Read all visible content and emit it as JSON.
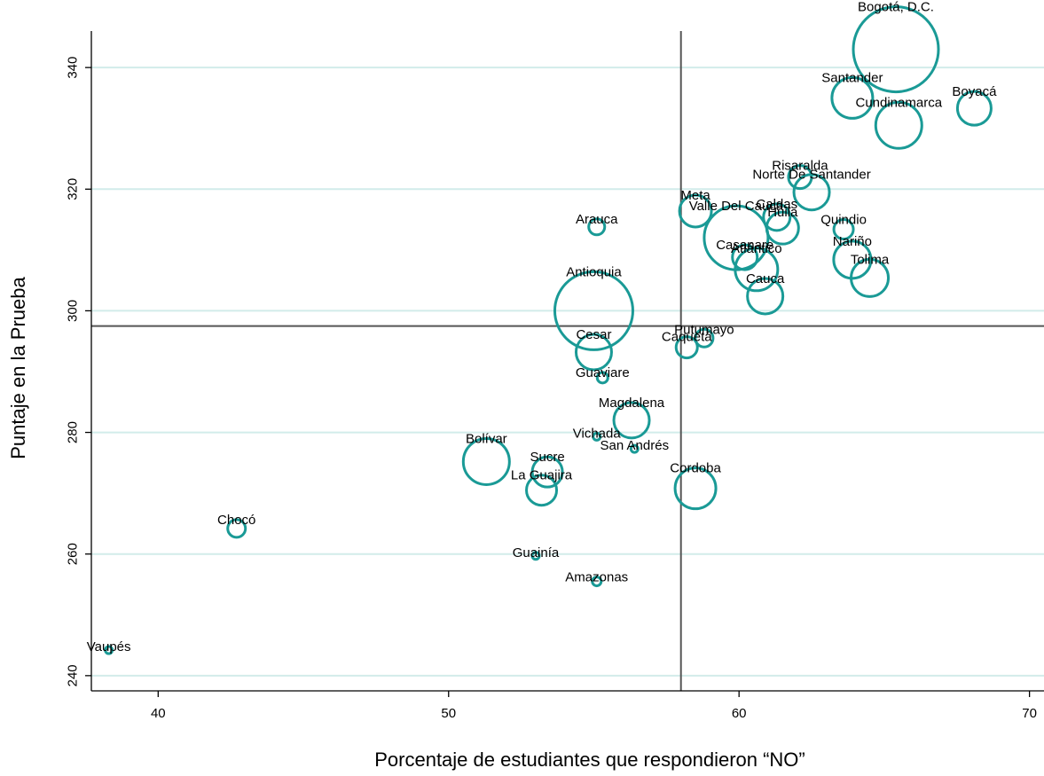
{
  "chart_data": {
    "type": "scatter",
    "xlabel": "Porcentaje de estudiantes que respondieron “NO”",
    "ylabel": "Puntaje en la Prueba",
    "xlim": [
      37.7,
      70.5
    ],
    "ylim": [
      237.5,
      346
    ],
    "xticks": [
      40,
      50,
      60,
      70
    ],
    "yticks": [
      240,
      260,
      280,
      300,
      320,
      340
    ],
    "grid": "horizontal",
    "ref_lines": {
      "x": 58,
      "y": 297.5
    },
    "colors": {
      "marker": "#1a9a96",
      "grid": "#d2ecea",
      "ref": "#555555",
      "axis": "#000000"
    },
    "points": [
      {
        "name": "Bogotá, D.C.",
        "x": 65.4,
        "y": 343,
        "size": 48
      },
      {
        "name": "Santander",
        "x": 63.9,
        "y": 335,
        "size": 23
      },
      {
        "name": "Boyacá",
        "x": 68.1,
        "y": 333.3,
        "size": 19
      },
      {
        "name": "Cundinamarca",
        "x": 65.5,
        "y": 330.5,
        "size": 26
      },
      {
        "name": "Risaralda",
        "x": 62.1,
        "y": 322,
        "size": 13
      },
      {
        "name": "Norte De Santander",
        "x": 62.5,
        "y": 319.5,
        "size": 20
      },
      {
        "name": "Meta",
        "x": 58.5,
        "y": 316.4,
        "size": 18
      },
      {
        "name": "Caldas",
        "x": 61.3,
        "y": 315.4,
        "size": 15
      },
      {
        "name": "Huila",
        "x": 61.5,
        "y": 313.6,
        "size": 18
      },
      {
        "name": "Arauca",
        "x": 55.1,
        "y": 313.8,
        "size": 9
      },
      {
        "name": "Quindio",
        "x": 63.6,
        "y": 313.4,
        "size": 11
      },
      {
        "name": "Valle Del Cauca",
        "x": 59.9,
        "y": 312,
        "size": 36
      },
      {
        "name": "Casanare",
        "x": 60.2,
        "y": 308.8,
        "size": 14
      },
      {
        "name": "Nariño",
        "x": 63.9,
        "y": 308.4,
        "size": 21
      },
      {
        "name": "Atlántico",
        "x": 60.6,
        "y": 306.8,
        "size": 24
      },
      {
        "name": "Tolima",
        "x": 64.5,
        "y": 305.4,
        "size": 21
      },
      {
        "name": "Cauca",
        "x": 60.9,
        "y": 302.4,
        "size": 20
      },
      {
        "name": "Antioquia",
        "x": 55,
        "y": 300,
        "size": 44
      },
      {
        "name": "Putumayo",
        "x": 58.8,
        "y": 295.5,
        "size": 10
      },
      {
        "name": "Caquetá",
        "x": 58.2,
        "y": 294,
        "size": 12
      },
      {
        "name": "Cesar",
        "x": 55,
        "y": 293.2,
        "size": 20
      },
      {
        "name": "Guaviare",
        "x": 55.3,
        "y": 289,
        "size": 6
      },
      {
        "name": "Magdalena",
        "x": 56.3,
        "y": 282,
        "size": 20
      },
      {
        "name": "Vichada",
        "x": 55.1,
        "y": 279.3,
        "size": 4
      },
      {
        "name": "San Andrés",
        "x": 56.4,
        "y": 277.3,
        "size": 4
      },
      {
        "name": "Bolívar",
        "x": 51.3,
        "y": 275.2,
        "size": 26
      },
      {
        "name": "Sucre",
        "x": 53.4,
        "y": 273.5,
        "size": 17
      },
      {
        "name": "La Guajira",
        "x": 53.2,
        "y": 270.5,
        "size": 17
      },
      {
        "name": "Cordoba",
        "x": 58.5,
        "y": 270.8,
        "size": 23
      },
      {
        "name": "Chocó",
        "x": 42.7,
        "y": 264.2,
        "size": 10
      },
      {
        "name": "Guainía",
        "x": 53,
        "y": 259.7,
        "size": 4
      },
      {
        "name": "Amazonas",
        "x": 55.1,
        "y": 255.5,
        "size": 5
      },
      {
        "name": "Vaupés",
        "x": 38.3,
        "y": 244.2,
        "size": 4
      }
    ]
  }
}
